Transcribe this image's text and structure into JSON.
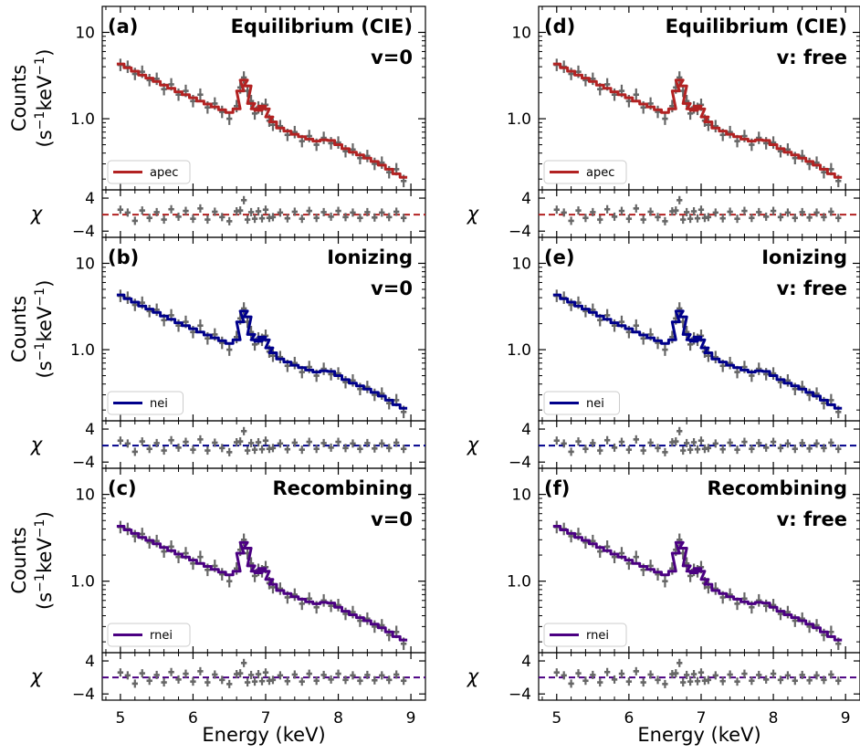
{
  "colors": {
    "apec": "#b22222",
    "nei": "#00008b",
    "rnei": "#4b0082",
    "data": "#666666"
  },
  "labels": {
    "ylabel_line1": "Counts",
    "ylabel_line2_prefix": "(s",
    "ylabel_exp1": "−1",
    "ylabel_mid": " keV",
    "ylabel_exp2": "−1",
    "ylabel_suffix": ")",
    "resid_label": "χ",
    "xlabel": "Energy (keV)"
  },
  "chart_data": [
    {
      "panel": "a",
      "letter": "(a)",
      "title1": "Equilibrium (CIE)",
      "title2": "v=0",
      "model": "apec",
      "type": "line",
      "xlabel": "Energy (keV)",
      "ylabel": "Counts (s−1 keV−1)",
      "xlim": [
        4.75,
        9.2
      ],
      "xticks": [
        "5",
        "6",
        "7",
        "8",
        "9"
      ],
      "yscale": "log",
      "ylim": [
        0.15,
        20
      ],
      "yticks": [
        "10",
        "1.0"
      ],
      "resid_ylim": [
        -5.5,
        6
      ],
      "resid_yticks": [
        "4",
        "−4"
      ],
      "legend": "lower-left"
    },
    {
      "panel": "b",
      "letter": "(b)",
      "title1": "Ionizing",
      "title2": "v=0",
      "model": "nei",
      "type": "line",
      "xlabel": "Energy (keV)",
      "ylabel": "Counts (s−1 keV−1)",
      "xlim": [
        4.75,
        9.2
      ],
      "xticks": [
        "5",
        "6",
        "7",
        "8",
        "9"
      ],
      "yscale": "log",
      "ylim": [
        0.15,
        20
      ],
      "yticks": [
        "10",
        "1.0"
      ],
      "resid_ylim": [
        -5.5,
        6
      ],
      "resid_yticks": [
        "4",
        "−4"
      ],
      "legend": "lower-left"
    },
    {
      "panel": "c",
      "letter": "(c)",
      "title1": "Recombining",
      "title2": "v=0",
      "model": "rnei",
      "type": "line",
      "xlabel": "Energy (keV)",
      "ylabel": "Counts (s−1 keV−1)",
      "xlim": [
        4.75,
        9.2
      ],
      "xticks": [
        "5",
        "6",
        "7",
        "8",
        "9"
      ],
      "yscale": "log",
      "ylim": [
        0.15,
        20
      ],
      "yticks": [
        "10",
        "1.0"
      ],
      "resid_ylim": [
        -5.5,
        6
      ],
      "resid_yticks": [
        "4",
        "−4"
      ],
      "legend": "lower-left"
    },
    {
      "panel": "d",
      "letter": "(d)",
      "title1": "Equilibrium (CIE)",
      "title2": "v: free",
      "model": "apec",
      "type": "line",
      "xlabel": "Energy (keV)",
      "ylabel": "",
      "xlim": [
        4.75,
        9.2
      ],
      "xticks": [
        "5",
        "6",
        "7",
        "8",
        "9"
      ],
      "yscale": "log",
      "ylim": [
        0.15,
        20
      ],
      "yticks": [
        "10",
        "1.0"
      ],
      "resid_ylim": [
        -5.5,
        6
      ],
      "resid_yticks": [
        "4",
        "−4"
      ],
      "legend": "lower-left"
    },
    {
      "panel": "e",
      "letter": "(e)",
      "title1": "Ionizing",
      "title2": "v: free",
      "model": "nei",
      "type": "line",
      "xlabel": "Energy (keV)",
      "ylabel": "",
      "xlim": [
        4.75,
        9.2
      ],
      "xticks": [
        "5",
        "6",
        "7",
        "8",
        "9"
      ],
      "yscale": "log",
      "ylim": [
        0.15,
        20
      ],
      "yticks": [
        "10",
        "1.0"
      ],
      "resid_ylim": [
        -5.5,
        6
      ],
      "resid_yticks": [
        "4",
        "−4"
      ],
      "legend": "lower-left"
    },
    {
      "panel": "f",
      "letter": "(f)",
      "title1": "Recombining",
      "title2": "v: free",
      "model": "rnei",
      "type": "line",
      "xlabel": "Energy (keV)",
      "ylabel": "",
      "xlim": [
        4.75,
        9.2
      ],
      "xticks": [
        "5",
        "6",
        "7",
        "8",
        "9"
      ],
      "yscale": "log",
      "ylim": [
        0.15,
        20
      ],
      "yticks": [
        "10",
        "1.0"
      ],
      "resid_ylim": [
        -5.5,
        6
      ],
      "resid_yticks": [
        "4",
        "−4"
      ],
      "legend": "lower-left"
    }
  ],
  "spectrum": {
    "x": [
      5.0,
      5.1,
      5.2,
      5.3,
      5.4,
      5.5,
      5.6,
      5.7,
      5.8,
      5.9,
      6.0,
      6.1,
      6.2,
      6.3,
      6.4,
      6.5,
      6.6,
      6.65,
      6.7,
      6.75,
      6.8,
      6.85,
      6.9,
      6.95,
      7.0,
      7.05,
      7.1,
      7.2,
      7.3,
      7.4,
      7.5,
      7.6,
      7.7,
      7.8,
      7.9,
      8.0,
      8.1,
      8.2,
      8.3,
      8.4,
      8.5,
      8.6,
      8.7,
      8.8,
      8.9
    ],
    "model": [
      4.3,
      3.9,
      3.55,
      3.2,
      2.95,
      2.7,
      2.45,
      2.25,
      2.05,
      1.9,
      1.75,
      1.6,
      1.48,
      1.37,
      1.27,
      1.18,
      1.3,
      2.1,
      2.8,
      2.4,
      1.5,
      1.3,
      1.25,
      1.4,
      1.3,
      1.05,
      0.92,
      0.78,
      0.72,
      0.66,
      0.62,
      0.58,
      0.55,
      0.57,
      0.56,
      0.5,
      0.45,
      0.41,
      0.38,
      0.35,
      0.32,
      0.29,
      0.26,
      0.23,
      0.21
    ],
    "data": [
      4.2,
      4.0,
      3.3,
      3.5,
      2.8,
      2.9,
      2.2,
      2.5,
      1.9,
      2.1,
      1.6,
      1.9,
      1.35,
      1.5,
      1.2,
      1.0,
      1.4,
      2.3,
      3.0,
      2.1,
      1.6,
      1.15,
      1.35,
      1.3,
      1.45,
      0.95,
      0.85,
      0.82,
      0.65,
      0.7,
      0.55,
      0.63,
      0.5,
      0.6,
      0.52,
      0.53,
      0.42,
      0.44,
      0.35,
      0.37,
      0.3,
      0.31,
      0.24,
      0.26,
      0.19
    ],
    "resid": [
      1.2,
      0.5,
      -1.5,
      1.0,
      -0.8,
      0.6,
      -1.2,
      1.3,
      -0.5,
      0.9,
      -1.0,
      1.5,
      -1.2,
      0.7,
      -0.6,
      -1.6,
      0.8,
      1.0,
      3.5,
      -1.2,
      0.6,
      -1.0,
      0.8,
      -0.9,
      1.2,
      -0.8,
      -0.6,
      0.5,
      -0.9,
      0.7,
      -1.0,
      0.9,
      -0.8,
      0.6,
      -0.5,
      0.9,
      -0.6,
      0.5,
      -0.8,
      0.6,
      -0.7,
      0.5,
      -0.6,
      0.7,
      -0.8
    ]
  }
}
